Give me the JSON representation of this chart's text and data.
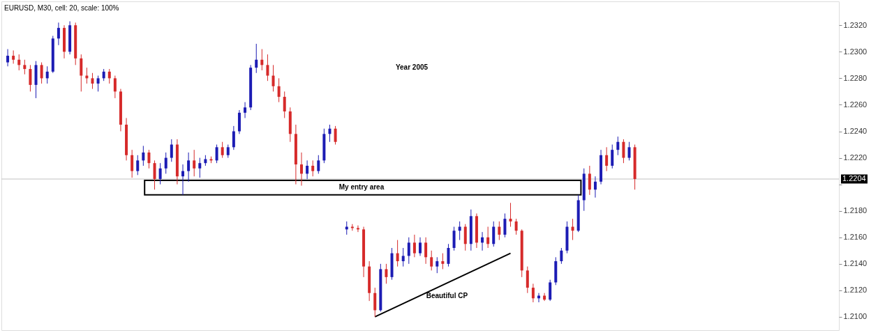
{
  "chart_data": {
    "type": "candlestick",
    "categories": [
      null,
      null,
      null,
      null,
      null,
      null,
      null,
      null,
      null,
      null,
      null,
      null,
      null,
      null,
      null,
      null,
      null,
      null,
      null,
      null,
      null,
      null,
      null,
      null,
      null,
      null,
      null,
      null,
      null,
      null,
      null,
      null,
      null,
      null,
      null,
      null,
      null,
      null,
      null,
      null,
      null,
      null,
      null,
      null,
      null,
      null,
      null,
      null,
      null,
      null,
      null,
      null,
      null,
      null,
      null,
      null,
      null,
      null,
      null,
      null,
      null,
      null,
      null,
      null,
      null,
      null,
      null,
      null,
      null,
      null,
      null,
      null,
      null,
      null,
      null,
      null,
      null,
      null,
      null,
      null,
      null,
      null,
      null,
      null,
      null,
      null,
      null,
      null,
      null,
      null,
      null,
      null,
      null,
      null,
      null,
      null,
      null,
      null,
      null,
      null,
      null,
      null,
      null,
      null,
      null,
      null,
      null,
      null,
      null,
      null,
      null,
      null,
      null,
      null,
      null,
      null,
      null,
      null,
      null,
      null,
      null,
      null,
      null,
      null,
      null,
      null,
      null,
      null,
      null,
      null,
      null,
      null,
      null,
      null,
      null,
      null,
      null,
      null,
      null,
      null,
      null,
      null,
      null,
      null,
      null,
      null,
      null
    ],
    "ohlc": [
      [
        1.2292,
        1.2302,
        1.2289,
        1.2297
      ],
      [
        1.2297,
        1.2301,
        1.2291,
        1.2294
      ],
      [
        1.2294,
        1.2298,
        1.2286,
        1.229
      ],
      [
        1.229,
        1.2294,
        1.2283,
        1.2287
      ],
      [
        1.2287,
        1.229,
        1.227,
        1.2275
      ],
      [
        1.2275,
        1.2293,
        1.2265,
        1.229
      ],
      [
        1.229,
        1.2292,
        1.2276,
        1.228
      ],
      [
        1.228,
        1.2289,
        1.2276,
        1.2285
      ],
      [
        1.2285,
        1.2312,
        1.2284,
        1.231
      ],
      [
        1.231,
        1.2322,
        1.2305,
        1.2318
      ],
      [
        1.2318,
        1.232,
        1.2295,
        1.23
      ],
      [
        1.23,
        1.2323,
        1.2298,
        1.232
      ],
      [
        1.232,
        1.2322,
        1.229,
        1.2295
      ],
      [
        1.2295,
        1.2298,
        1.227,
        1.2282
      ],
      [
        1.2282,
        1.2288,
        1.2276,
        1.228
      ],
      [
        1.228,
        1.2284,
        1.2272,
        1.2276
      ],
      [
        1.2276,
        1.2282,
        1.227,
        1.228
      ],
      [
        1.228,
        1.2287,
        1.2278,
        1.2285
      ],
      [
        1.2285,
        1.2287,
        1.2276,
        1.228
      ],
      [
        1.228,
        1.2282,
        1.2265,
        1.227
      ],
      [
        1.227,
        1.2272,
        1.224,
        1.2245
      ],
      [
        1.2245,
        1.225,
        1.2218,
        1.2222
      ],
      [
        1.2222,
        1.2226,
        1.2205,
        1.221
      ],
      [
        1.221,
        1.2222,
        1.2207,
        1.2218
      ],
      [
        1.2218,
        1.2229,
        1.2214,
        1.2224
      ],
      [
        1.2224,
        1.2226,
        1.2212,
        1.2216
      ],
      [
        1.2216,
        1.2218,
        1.2196,
        1.2204
      ],
      [
        1.2204,
        1.2216,
        1.22,
        1.2212
      ],
      [
        1.2212,
        1.2224,
        1.2208,
        1.222
      ],
      [
        1.222,
        1.2234,
        1.2217,
        1.223
      ],
      [
        1.223,
        1.2234,
        1.22,
        1.2206
      ],
      [
        1.2206,
        1.2215,
        1.2192,
        1.221
      ],
      [
        1.221,
        1.2224,
        1.2202,
        1.2218
      ],
      [
        1.2218,
        1.2226,
        1.2206,
        1.2212
      ],
      [
        1.2212,
        1.222,
        1.2205,
        1.2216
      ],
      [
        1.2216,
        1.2222,
        1.2214,
        1.2219
      ],
      [
        1.2219,
        1.2221,
        1.2216,
        1.2218
      ],
      [
        1.2218,
        1.223,
        1.2216,
        1.2228
      ],
      [
        1.2228,
        1.2232,
        1.222,
        1.2222
      ],
      [
        1.2222,
        1.223,
        1.222,
        1.2228
      ],
      [
        1.2228,
        1.2244,
        1.2226,
        1.224
      ],
      [
        1.224,
        1.2256,
        1.2238,
        1.2254
      ],
      [
        1.2254,
        1.2262,
        1.225,
        1.2258
      ],
      [
        1.2258,
        1.229,
        1.2256,
        1.2288
      ],
      [
        1.2288,
        1.2306,
        1.2284,
        1.2294
      ],
      [
        1.2294,
        1.2302,
        1.2286,
        1.229
      ],
      [
        1.229,
        1.2298,
        1.2278,
        1.2282
      ],
      [
        1.2282,
        1.229,
        1.227,
        1.2274
      ],
      [
        1.2274,
        1.228,
        1.2262,
        1.2266
      ],
      [
        1.2266,
        1.227,
        1.225,
        1.2255
      ],
      [
        1.2255,
        1.2258,
        1.2232,
        1.2238
      ],
      [
        1.2238,
        1.2245,
        1.22,
        1.2215
      ],
      [
        1.2215,
        1.2224,
        1.2199,
        1.2208
      ],
      [
        1.2208,
        1.2218,
        1.2204,
        1.2214
      ],
      [
        1.2214,
        1.2218,
        1.2206,
        1.221
      ],
      [
        1.221,
        1.2222,
        1.2208,
        1.2218
      ],
      [
        1.2218,
        1.2242,
        1.2216,
        1.2238
      ],
      [
        1.2238,
        1.2245,
        1.2232,
        1.2242
      ],
      [
        1.2242,
        1.2244,
        1.223,
        1.2232
      ],
      null,
      [
        1.2166,
        1.2172,
        1.2162,
        1.2168
      ],
      [
        1.2168,
        1.217,
        1.2165,
        1.2167
      ],
      [
        1.2167,
        1.2169,
        1.2164,
        1.2166
      ],
      [
        1.2166,
        1.2168,
        1.213,
        1.2138
      ],
      [
        1.2138,
        1.2142,
        1.2112,
        1.2118
      ],
      [
        1.2118,
        1.2122,
        1.21,
        1.2105
      ],
      [
        1.2105,
        1.214,
        1.2104,
        1.2136
      ],
      [
        1.2136,
        1.214,
        1.2125,
        1.213
      ],
      [
        1.213,
        1.2152,
        1.2128,
        1.2148
      ],
      [
        1.2148,
        1.2158,
        1.2138,
        1.2142
      ],
      [
        1.2142,
        1.2152,
        1.2138,
        1.2146
      ],
      [
        1.2146,
        1.216,
        1.214,
        1.2156
      ],
      [
        1.2156,
        1.2162,
        1.2145,
        1.2148
      ],
      [
        1.2148,
        1.216,
        1.2146,
        1.2156
      ],
      [
        1.2156,
        1.216,
        1.214,
        1.2145
      ],
      [
        1.2145,
        1.215,
        1.2135,
        1.2138
      ],
      [
        1.2138,
        1.2145,
        1.2133,
        1.2142
      ],
      [
        1.2142,
        1.2148,
        1.2136,
        1.214
      ],
      [
        1.214,
        1.2155,
        1.2138,
        1.2152
      ],
      [
        1.2152,
        1.2168,
        1.215,
        1.2165
      ],
      [
        1.2165,
        1.2172,
        1.2158,
        1.2168
      ],
      [
        1.2168,
        1.217,
        1.215,
        1.2155
      ],
      [
        1.2155,
        1.2181,
        1.215,
        1.2176
      ],
      [
        1.2176,
        1.2178,
        1.2152,
        1.2156
      ],
      [
        1.2156,
        1.2164,
        1.215,
        1.216
      ],
      [
        1.216,
        1.2168,
        1.2152,
        1.2155
      ],
      [
        1.2155,
        1.2172,
        1.2153,
        1.2168
      ],
      [
        1.2168,
        1.2172,
        1.2158,
        1.2162
      ],
      [
        1.2162,
        1.2178,
        1.216,
        1.2174
      ],
      [
        1.2174,
        1.2186,
        1.2168,
        1.2172
      ],
      [
        1.2172,
        1.2174,
        1.2162,
        1.2165
      ],
      [
        1.2165,
        1.2166,
        1.213,
        1.2135
      ],
      [
        1.2135,
        1.2138,
        1.2118,
        1.2122
      ],
      [
        1.2122,
        1.2125,
        1.2111,
        1.2114
      ],
      [
        1.2114,
        1.2118,
        1.2111,
        1.2116
      ],
      [
        1.2116,
        1.2118,
        1.2112,
        1.2113
      ],
      [
        1.2113,
        1.2128,
        1.2112,
        1.2126
      ],
      [
        1.2126,
        1.2145,
        1.2124,
        1.2142
      ],
      [
        1.2142,
        1.2152,
        1.214,
        1.215
      ],
      [
        1.215,
        1.2172,
        1.2148,
        1.2168
      ],
      [
        1.2168,
        1.2174,
        1.2158,
        1.2165
      ],
      [
        1.2165,
        1.2192,
        1.2164,
        1.2188
      ],
      [
        1.2188,
        1.2212,
        1.218,
        1.2208
      ],
      [
        1.2208,
        1.2214,
        1.2192,
        1.2196
      ],
      [
        1.2196,
        1.2206,
        1.219,
        1.2202
      ],
      [
        1.2202,
        1.2226,
        1.22,
        1.2222
      ],
      [
        1.2222,
        1.2228,
        1.221,
        1.2214
      ],
      [
        1.2214,
        1.223,
        1.2212,
        1.2226
      ],
      [
        1.2226,
        1.2236,
        1.2222,
        1.2232
      ],
      [
        1.2232,
        1.2234,
        1.2216,
        1.222
      ],
      [
        1.222,
        1.2232,
        1.2218,
        1.2228
      ],
      [
        1.2228,
        1.223,
        1.2196,
        1.2204
      ],
      null,
      null,
      null,
      null,
      null,
      null,
      null,
      null,
      null,
      null,
      null,
      null,
      null,
      null,
      null,
      null,
      null,
      null,
      null,
      null,
      null,
      null,
      null,
      null,
      null,
      null,
      null,
      null,
      null,
      null,
      null,
      null,
      null,
      null,
      null
    ],
    "colors": [
      "#1c1cb4",
      "#d62a2a",
      "#d62a2a",
      "#d62a2a",
      "#d62a2a",
      "#1c1cb4",
      "#d62a2a",
      "#1c1cb4",
      "#1c1cb4",
      "#1c1cb4",
      "#d62a2a",
      "#1c1cb4",
      "#d62a2a",
      "#d62a2a",
      "#d62a2a",
      "#d62a2a",
      "#1c1cb4",
      "#1c1cb4",
      "#d62a2a",
      "#d62a2a",
      "#d62a2a",
      "#d62a2a",
      "#d62a2a",
      "#1c1cb4",
      "#1c1cb4",
      "#d62a2a",
      "#d62a2a",
      "#1c1cb4",
      "#1c1cb4",
      "#1c1cb4",
      "#d62a2a",
      "#1c1cb4",
      "#1c1cb4",
      "#d62a2a",
      "#1c1cb4",
      "#1c1cb4",
      "#d62a2a",
      "#1c1cb4",
      "#d62a2a",
      "#1c1cb4",
      "#1c1cb4",
      "#1c1cb4",
      "#1c1cb4",
      "#1c1cb4",
      "#1c1cb4",
      "#d62a2a",
      "#d62a2a",
      "#d62a2a",
      "#d62a2a",
      "#d62a2a",
      "#d62a2a",
      "#d62a2a",
      "#d62a2a",
      "#1c1cb4",
      "#d62a2a",
      "#1c1cb4",
      "#1c1cb4",
      "#1c1cb4",
      "#d62a2a",
      null,
      "#1c1cb4",
      "#d62a2a",
      "#d62a2a",
      "#d62a2a",
      "#d62a2a",
      "#d62a2a",
      "#1c1cb4",
      "#d62a2a",
      "#1c1cb4",
      "#d62a2a",
      "#1c1cb4",
      "#1c1cb4",
      "#d62a2a",
      "#1c1cb4",
      "#d62a2a",
      "#d62a2a",
      "#1c1cb4",
      "#d62a2a",
      "#1c1cb4",
      "#1c1cb4",
      "#1c1cb4",
      "#d62a2a",
      "#1c1cb4",
      "#d62a2a",
      "#1c1cb4",
      "#d62a2a",
      "#1c1cb4",
      "#d62a2a",
      "#1c1cb4",
      "#d62a2a",
      "#d62a2a",
      "#d62a2a",
      "#d62a2a",
      "#d62a2a",
      "#1c1cb4",
      "#d62a2a",
      "#1c1cb4",
      "#1c1cb4",
      "#1c1cb4",
      "#1c1cb4",
      "#d62a2a",
      "#1c1cb4",
      "#1c1cb4",
      "#d62a2a",
      "#1c1cb4",
      "#1c1cb4",
      "#d62a2a",
      "#1c1cb4",
      "#1c1cb4",
      "#d62a2a",
      "#1c1cb4",
      "#d62a2a",
      null,
      null,
      null,
      null,
      null,
      null,
      null,
      null,
      null,
      null,
      null,
      null,
      null,
      null,
      null,
      null,
      null,
      null,
      null,
      null,
      null,
      null,
      null,
      null,
      null,
      null,
      null,
      null,
      null,
      null,
      null,
      null,
      null,
      null,
      null
    ],
    "series": [
      {
        "type": "line",
        "color": "#000000",
        "values": [
          null,
          null,
          null,
          null,
          null,
          null,
          null,
          null,
          null,
          null,
          null,
          null,
          null,
          null,
          null,
          null,
          null,
          null,
          null,
          null,
          null,
          null,
          null,
          null,
          null,
          null,
          null,
          null,
          null,
          null,
          null,
          null,
          null,
          null,
          null,
          null,
          null,
          null,
          null,
          null,
          null,
          null,
          null,
          null,
          null,
          null,
          null,
          null,
          null,
          null,
          null,
          null,
          null,
          null,
          null,
          null,
          null,
          null,
          null,
          null,
          null,
          null,
          null,
          null,
          null,
          1.21,
          null,
          null,
          null,
          null,
          null,
          null,
          null,
          null,
          null,
          null,
          null,
          null,
          null,
          null,
          null,
          null,
          null,
          null,
          null,
          null,
          null,
          null,
          null,
          1.2148,
          null,
          null,
          null,
          null,
          null,
          null,
          null,
          null,
          null,
          null,
          null,
          null,
          null,
          null,
          null,
          null,
          null,
          null,
          null,
          null,
          null,
          null,
          null,
          null,
          null,
          null,
          null,
          null,
          null,
          null,
          null,
          null,
          null,
          null,
          null,
          null,
          null,
          null,
          null,
          null,
          null,
          null,
          null,
          null,
          null,
          null,
          null,
          null,
          null,
          null,
          null,
          null,
          null,
          null,
          null,
          null,
          null
        ]
      }
    ],
    "ylim": [
      1.209,
      1.2338
    ],
    "yticks": [
      {
        "value": 1.21,
        "label": "1.2100"
      },
      {
        "value": 1.212,
        "label": "1.2120"
      },
      {
        "value": 1.214,
        "label": "1.2140"
      },
      {
        "value": 1.216,
        "label": "1.2160"
      },
      {
        "value": 1.218,
        "label": "1.2180"
      },
      {
        "value": 1.22,
        "label": null
      },
      {
        "value": 1.222,
        "label": "1.2220"
      },
      {
        "value": 1.224,
        "label": "1.2240"
      },
      {
        "value": 1.226,
        "label": "1.2260"
      },
      {
        "value": 1.228,
        "label": "1.2280"
      },
      {
        "value": 1.23,
        "label": "1.2300"
      },
      {
        "value": 1.232,
        "label": "1.2320"
      }
    ],
    "ref_lines": [
      {
        "axis": "y",
        "value": 1.2204,
        "label": "1.2204",
        "color": "#c0c0c0"
      }
    ],
    "bands": [
      {
        "axis": "y",
        "from": 1.2192,
        "to": 1.2203,
        "label": "My entry area"
      }
    ],
    "annotations": [
      "EURUSD, M30, cell: 20, scale: 100%",
      "Year 2005",
      "Beautiful CP"
    ],
    "tick_labels": "y",
    "grid": false,
    "legend": false
  }
}
